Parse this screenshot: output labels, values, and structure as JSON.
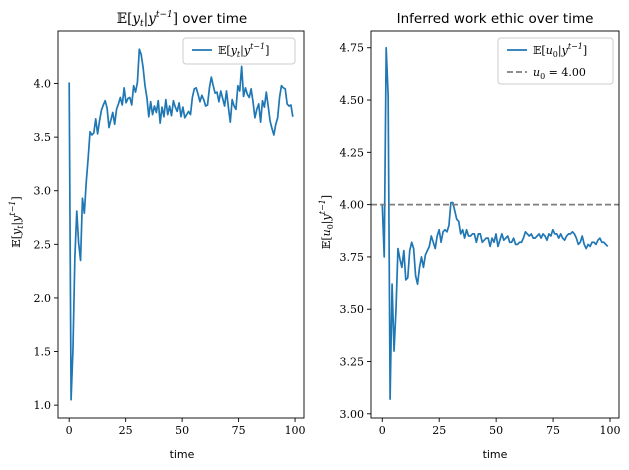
{
  "chart_data": [
    {
      "type": "line",
      "title": "E[y_t|y^{t-1}] over time",
      "xlabel": "time",
      "ylabel": "E[y_t|y^{t-1}]",
      "xlim": [
        -4.95,
        103.95
      ],
      "ylim": [
        0.88,
        4.49
      ],
      "x_ticks": [
        0,
        25,
        50,
        75,
        100
      ],
      "y_ticks": [
        1.0,
        1.5,
        2.0,
        2.5,
        3.0,
        3.5,
        4.0
      ],
      "x_tick_labels": [
        "0",
        "25",
        "50",
        "75",
        "100"
      ],
      "y_tick_labels": [
        "1.0",
        "1.5",
        "2.0",
        "2.5",
        "3.0",
        "3.5",
        "4.0"
      ],
      "legend_location": "top-right",
      "grid": false,
      "series": [
        {
          "name": "E[y_t|y^{t-1}]",
          "color": "#1f77b4",
          "values": [
            4.01,
            1.05,
            1.52,
            2.38,
            2.81,
            2.51,
            2.35,
            2.93,
            2.79,
            3.08,
            3.3,
            3.55,
            3.52,
            3.54,
            3.67,
            3.53,
            3.65,
            3.75,
            3.8,
            3.84,
            3.77,
            3.59,
            3.66,
            3.73,
            3.62,
            3.76,
            3.81,
            3.87,
            3.8,
            3.96,
            3.82,
            3.86,
            3.87,
            3.8,
            3.98,
            3.92,
            4.01,
            4.32,
            4.27,
            4.15,
            3.98,
            3.87,
            3.69,
            3.83,
            3.71,
            3.79,
            3.73,
            3.84,
            3.63,
            3.78,
            3.69,
            3.85,
            3.71,
            3.79,
            3.7,
            3.84,
            3.78,
            3.74,
            3.82,
            3.69,
            3.78,
            3.68,
            3.71,
            3.74,
            3.71,
            3.87,
            3.95,
            3.96,
            3.9,
            3.83,
            3.89,
            3.85,
            3.79,
            3.8,
            3.96,
            4.06,
            3.98,
            3.91,
            3.92,
            3.83,
            3.93,
            3.86,
            3.79,
            3.93,
            3.78,
            3.64,
            3.85,
            3.79,
            3.76,
            3.98,
            3.93,
            4.16,
            3.88,
            3.96,
            3.9,
            3.87,
            3.95,
            3.83,
            3.68,
            3.76,
            3.81,
            3.64,
            3.84,
            3.78,
            3.92,
            3.79,
            3.65,
            3.58,
            3.52,
            3.62,
            3.68,
            3.87,
            3.98,
            3.96,
            3.95,
            3.81,
            3.79,
            3.8,
            3.69
          ]
        }
      ]
    },
    {
      "type": "line",
      "title": "Inferred work ethic over time",
      "xlabel": "time",
      "ylabel": "E[u_0|y^{t-1}]",
      "xlim": [
        -4.95,
        103.95
      ],
      "ylim": [
        2.98,
        4.83
      ],
      "x_ticks": [
        0,
        25,
        50,
        75,
        100
      ],
      "y_ticks": [
        3.0,
        3.25,
        3.5,
        3.75,
        4.0,
        4.25,
        4.5,
        4.75
      ],
      "x_tick_labels": [
        "0",
        "25",
        "50",
        "75",
        "100"
      ],
      "y_tick_labels": [
        "3.00",
        "3.25",
        "3.50",
        "3.75",
        "4.00",
        "4.25",
        "4.50",
        "4.75"
      ],
      "legend_location": "top-right",
      "grid": false,
      "series": [
        {
          "name": "E[u_0|y^{t-1}]",
          "color": "#1f77b4",
          "style": "solid",
          "values": [
            4.0,
            3.75,
            4.75,
            4.52,
            3.07,
            3.62,
            3.3,
            3.5,
            3.79,
            3.74,
            3.7,
            3.78,
            3.64,
            3.65,
            3.78,
            3.82,
            3.79,
            3.66,
            3.62,
            3.7,
            3.75,
            3.7,
            3.76,
            3.78,
            3.8,
            3.85,
            3.82,
            3.79,
            3.85,
            3.88,
            3.82,
            3.87,
            3.88,
            3.87,
            3.9,
            4.01,
            4.01,
            3.97,
            3.93,
            3.92,
            3.86,
            3.88,
            3.84,
            3.88,
            3.85,
            3.85,
            3.86,
            3.86,
            3.82,
            3.86,
            3.86,
            3.82,
            3.83,
            3.84,
            3.84,
            3.8,
            3.84,
            3.82,
            3.86,
            3.8,
            3.83,
            3.86,
            3.83,
            3.84,
            3.85,
            3.82,
            3.82,
            3.84,
            3.81,
            3.81,
            3.82,
            3.82,
            3.84,
            3.87,
            3.86,
            3.85,
            3.86,
            3.84,
            3.84,
            3.85,
            3.86,
            3.84,
            3.86,
            3.85,
            3.83,
            3.86,
            3.85,
            3.88,
            3.86,
            3.86,
            3.84,
            3.86,
            3.84,
            3.83,
            3.85,
            3.86,
            3.86,
            3.87,
            3.86,
            3.84,
            3.81,
            3.82,
            3.85,
            3.81,
            3.79,
            3.81,
            3.8,
            3.82,
            3.82,
            3.81,
            3.83,
            3.84,
            3.82,
            3.82,
            3.81,
            3.8
          ]
        },
        {
          "name": "u_0 = 4.00",
          "color": "#7f7f7f",
          "style": "dashed",
          "y": 4.0
        }
      ]
    }
  ]
}
